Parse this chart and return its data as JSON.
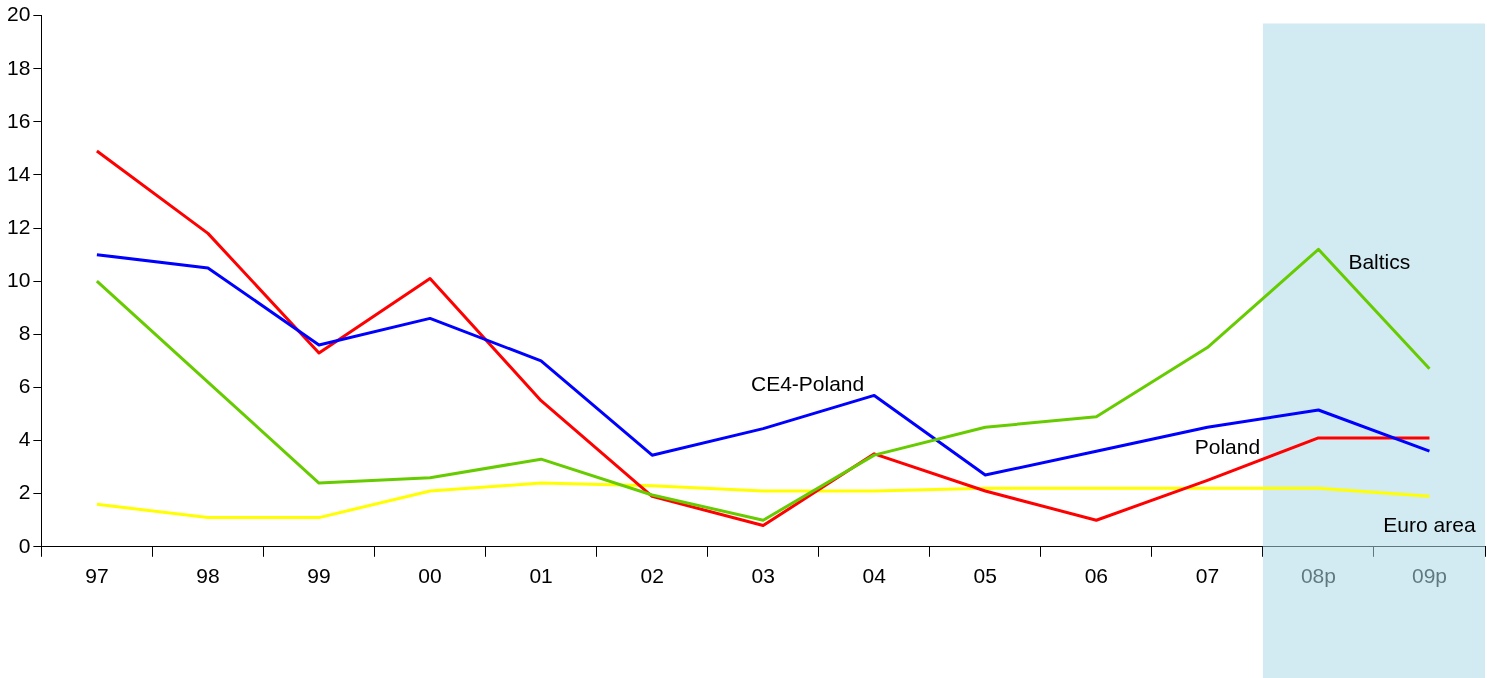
{
  "chart_data": {
    "type": "line",
    "categories": [
      "97",
      "98",
      "99",
      "00",
      "01",
      "02",
      "03",
      "04",
      "05",
      "06",
      "07",
      "08p",
      "09p"
    ],
    "series": [
      {
        "name": "Baltics",
        "color": "#66cc00",
        "values": [
          10.0,
          6.2,
          2.4,
          2.6,
          3.3,
          1.95,
          1.0,
          3.45,
          4.5,
          4.9,
          7.5,
          11.2,
          6.7
        ]
      },
      {
        "name": "CE4-Poland",
        "color": "#0000ff",
        "values": [
          11.0,
          10.5,
          7.6,
          8.6,
          7.0,
          3.45,
          4.45,
          5.7,
          2.7,
          3.6,
          4.5,
          5.15,
          3.6
        ]
      },
      {
        "name": "Poland",
        "color": "#ff0000",
        "values": [
          14.9,
          11.8,
          7.3,
          10.1,
          5.5,
          1.9,
          0.8,
          3.5,
          2.1,
          1.0,
          2.5,
          4.1,
          4.1
        ]
      },
      {
        "name": "Euro area",
        "color": "#ffff00",
        "values": [
          1.6,
          1.1,
          1.1,
          2.1,
          2.4,
          2.3,
          2.1,
          2.1,
          2.2,
          2.2,
          2.2,
          2.2,
          1.9
        ]
      }
    ],
    "ylim": [
      0,
      20
    ],
    "yticks": [
      0,
      2,
      4,
      6,
      8,
      10,
      12,
      14,
      16,
      18,
      20
    ],
    "bands": [
      {
        "axis": "x",
        "from": "08p",
        "to": "09p",
        "color": "#add8e6"
      }
    ],
    "grid": false,
    "legend": false,
    "marker": "none",
    "line_style": "solid"
  }
}
